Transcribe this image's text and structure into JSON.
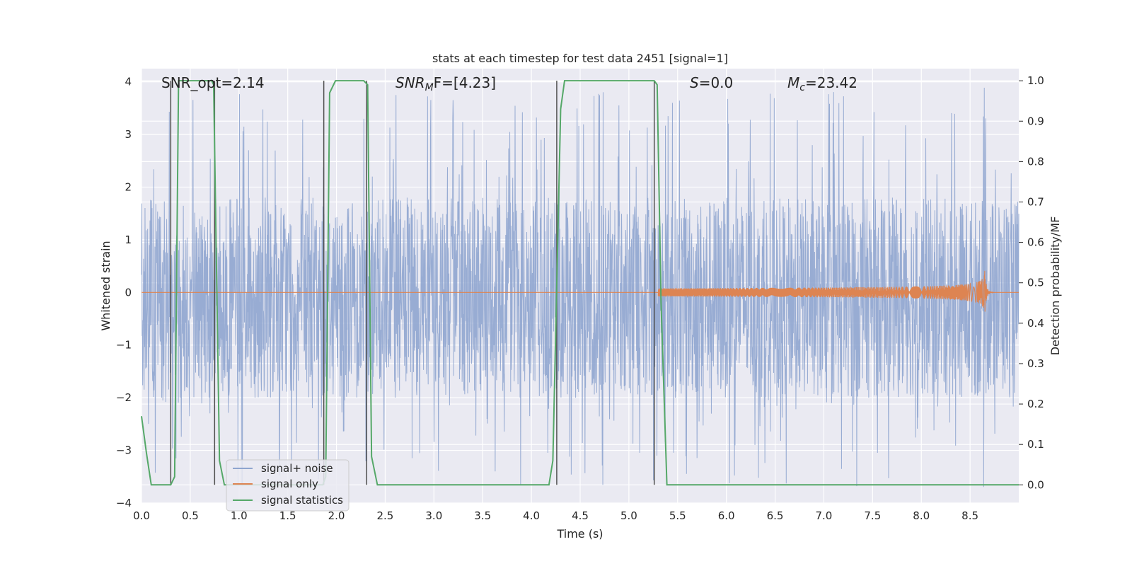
{
  "chart_data": {
    "type": "line",
    "title": "stats at each timestep for test data 2451 [signal=1]",
    "xlabel": "Time (s)",
    "ylabel": "Whitened strain",
    "y2label": "Detection probability/MF",
    "xlim": [
      0.0,
      9.0
    ],
    "ylim": [
      -4.0,
      4.25
    ],
    "y2lim": [
      -0.045,
      1.03
    ],
    "xticks": [
      "0.0",
      "0.5",
      "1.0",
      "1.5",
      "2.0",
      "2.5",
      "3.0",
      "3.5",
      "4.0",
      "4.5",
      "5.0",
      "5.5",
      "6.0",
      "6.5",
      "7.0",
      "7.5",
      "8.0",
      "8.5"
    ],
    "yticks": [
      "4",
      "3",
      "2",
      "1",
      "0",
      "−1",
      "−2",
      "−3",
      "−4"
    ],
    "y2ticks": [
      "1.0",
      "0.9",
      "0.8",
      "0.7",
      "0.6",
      "0.5",
      "0.4",
      "0.3",
      "0.2",
      "0.1",
      "0.0"
    ],
    "grid": true,
    "legend_position": "lower-left",
    "annotations": {
      "snr_opt": "SNR_opt=2.14",
      "snr_mf_sym": "SNR",
      "snr_mf_sub": "M",
      "snr_mf_rest": "F=[4.23]",
      "s_sym": "S",
      "s_rest": "=0.0",
      "mc_sym": "M",
      "mc_sub": "c",
      "mc_rest": "=23.42"
    },
    "series": [
      {
        "name": "signal+ noise",
        "color": "#8fa5cf",
        "description_of_values": "whitened strain noise, roughly uniform amplitude",
        "typical_range": [
          -2.0,
          1.8
        ],
        "extreme_range": [
          -3.7,
          3.9
        ]
      },
      {
        "name": "signal only",
        "color": "#dd8452",
        "chirp": {
          "start": 5.3,
          "peak_time": 8.65,
          "peak_amplitude": 0.45
        }
      },
      {
        "name": "signal statistics",
        "color": "#55a868",
        "points": [
          [
            0.0,
            0.17
          ],
          [
            0.05,
            0.08
          ],
          [
            0.1,
            0.0
          ],
          [
            0.3,
            0.0
          ],
          [
            0.34,
            0.02
          ],
          [
            0.38,
            1.0
          ],
          [
            0.72,
            1.0
          ],
          [
            0.74,
            0.99
          ],
          [
            0.8,
            0.06
          ],
          [
            0.85,
            0.0
          ],
          [
            1.86,
            0.0
          ],
          [
            1.89,
            0.02
          ],
          [
            1.93,
            0.97
          ],
          [
            1.99,
            1.0
          ],
          [
            2.28,
            1.0
          ],
          [
            2.32,
            0.99
          ],
          [
            2.36,
            0.07
          ],
          [
            2.42,
            0.0
          ],
          [
            4.18,
            0.0
          ],
          [
            4.22,
            0.06
          ],
          [
            4.3,
            0.93
          ],
          [
            4.34,
            1.0
          ],
          [
            5.26,
            1.0
          ],
          [
            5.29,
            0.99
          ],
          [
            5.33,
            0.45
          ],
          [
            5.39,
            0.0
          ],
          [
            9.0,
            0.0
          ]
        ]
      }
    ],
    "vertical_markers": [
      0.3,
      0.75,
      1.87,
      2.31,
      4.26,
      5.26
    ]
  },
  "colors": {
    "plot_bg": "#eaeaf2",
    "grid": "#ffffff",
    "marker": "#4f4f4f"
  }
}
